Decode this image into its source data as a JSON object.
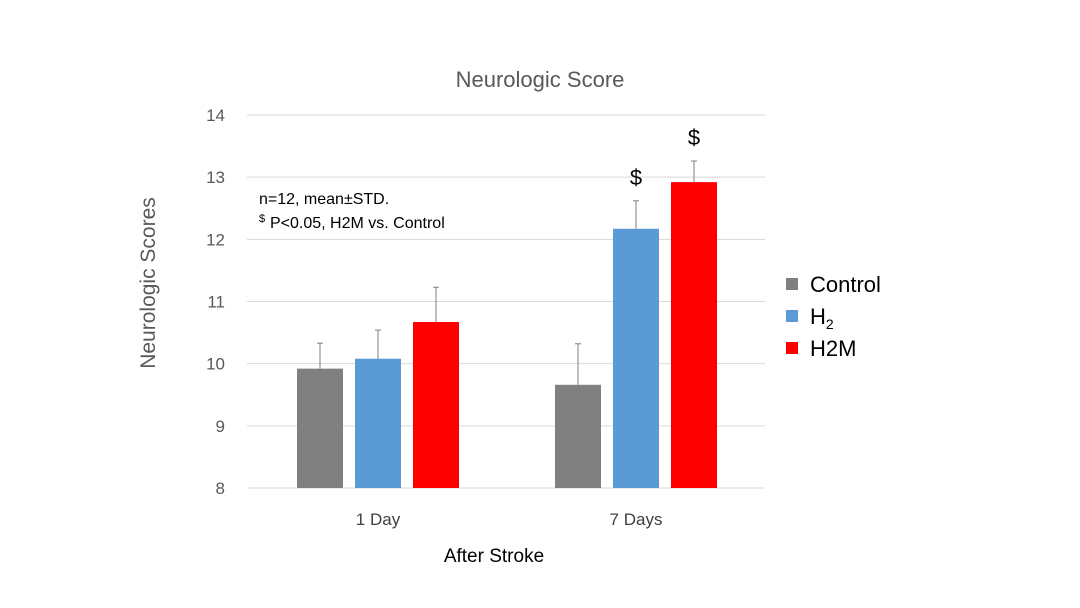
{
  "chart_data": {
    "type": "bar",
    "title": "Neurologic Score",
    "xlabel": "After Stroke",
    "ylabel": "Neurologic Scores",
    "ylim": [
      8,
      14
    ],
    "yticks": [
      8,
      9,
      10,
      11,
      12,
      13,
      14
    ],
    "grid": true,
    "legend_position": "right",
    "categories": [
      "1 Day",
      "7 Days"
    ],
    "series": [
      {
        "name": "Control",
        "legend_main": "Control",
        "legend_sub": "",
        "color": "#808080",
        "values": [
          9.92,
          9.66
        ],
        "errors": [
          0.41,
          0.66
        ],
        "markers": [
          "",
          ""
        ]
      },
      {
        "name": "H2",
        "legend_main": "H",
        "legend_sub": "2",
        "color": "#5b9bd5",
        "values": [
          10.08,
          12.17
        ],
        "errors": [
          0.46,
          0.45
        ],
        "markers": [
          "",
          "$"
        ]
      },
      {
        "name": "H2M",
        "legend_main": "H2M",
        "legend_sub": "",
        "color": "#ff0000",
        "values": [
          10.67,
          12.92
        ],
        "errors": [
          0.56,
          0.34
        ],
        "markers": [
          "",
          "$"
        ]
      }
    ],
    "annotations": {
      "line1": "n=12, mean±STD.",
      "line2_sup": "$",
      "line2": "P<0.05, H2M vs. Control"
    }
  }
}
